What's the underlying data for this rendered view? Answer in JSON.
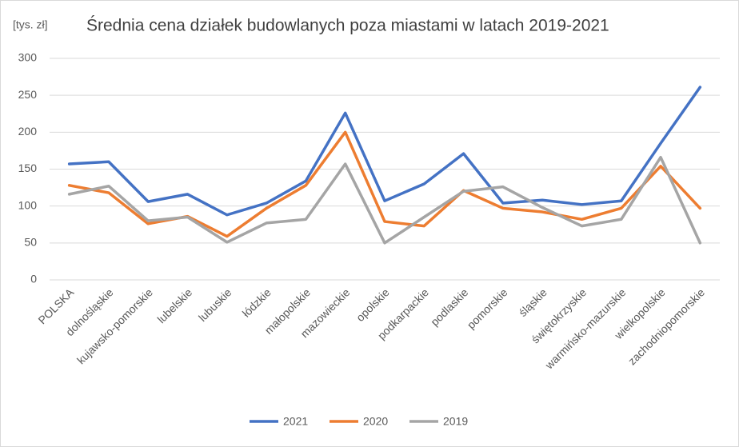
{
  "chart_data": {
    "type": "line",
    "title": "Średnia cena działek budowlanych poza miastami w latach 2019-2021",
    "y_label": "[tys. zł]",
    "categories": [
      "POLSKA",
      "dolnośląskie",
      "kujawsko-pomorskie",
      "lubelskie",
      "lubuskie",
      "łódzkie",
      "małopolskie",
      "mazowieckie",
      "opolskie",
      "podkarpackie",
      "podlaskie",
      "pomorskie",
      "śląskie",
      "świętokrzyskie",
      "warmińsko-mazurskie",
      "wielkopolskie",
      "zachodniopomorskie"
    ],
    "series": [
      {
        "name": "2021",
        "color": "#4472c4",
        "values": [
          157,
          160,
          106,
          116,
          88,
          104,
          134,
          226,
          107,
          130,
          171,
          104,
          108,
          102,
          107,
          185,
          261
        ]
      },
      {
        "name": "2020",
        "color": "#ed7d31",
        "values": [
          128,
          118,
          76,
          86,
          59,
          97,
          128,
          200,
          79,
          73,
          121,
          97,
          92,
          82,
          97,
          154,
          97
        ]
      },
      {
        "name": "2019",
        "color": "#a5a5a5",
        "values": [
          116,
          127,
          80,
          85,
          51,
          77,
          82,
          157,
          50,
          85,
          120,
          126,
          98,
          73,
          82,
          166,
          50
        ]
      }
    ],
    "ylim": [
      0,
      300
    ],
    "yticks": [
      0,
      50,
      100,
      150,
      200,
      250,
      300
    ],
    "grid": true,
    "legend": "bottom"
  }
}
